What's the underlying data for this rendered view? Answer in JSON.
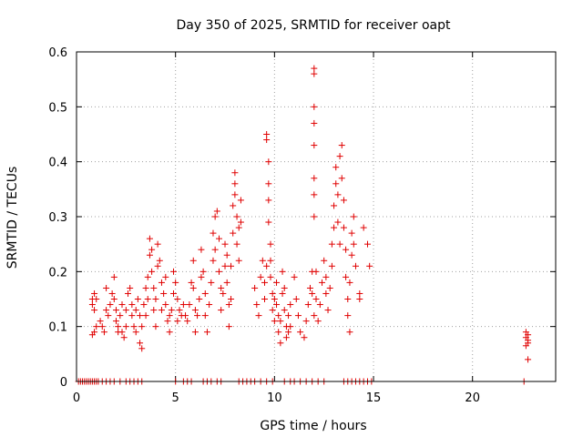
{
  "chart_data": {
    "type": "scatter",
    "title": "Day 350 of 2025, SRMTID for receiver oapt",
    "xlabel": "GPS time / hours",
    "ylabel": "SRMTID / TECUs",
    "xlim": [
      0,
      24.2
    ],
    "ylim": [
      0,
      0.6
    ],
    "grid": true,
    "x_ticks": [
      0,
      5,
      10,
      15,
      20
    ],
    "x_tick_labels": [
      "0",
      "5",
      "10",
      "15",
      "20"
    ],
    "y_ticks": [
      0,
      0.1,
      0.2,
      0.3,
      0.4,
      0.5,
      0.6
    ],
    "y_tick_labels": [
      "0",
      "0.1",
      "0.2",
      "0.3",
      "0.4",
      "0.5",
      "0.6"
    ],
    "marker": "+",
    "marker_color": "#e00000",
    "series": [
      {
        "name": "SRMTID",
        "points": [
          [
            0.1,
            0
          ],
          [
            0.2,
            0
          ],
          [
            0.3,
            0
          ],
          [
            0.4,
            0
          ],
          [
            0.5,
            0
          ],
          [
            0.6,
            0
          ],
          [
            0.7,
            0
          ],
          [
            0.8,
            0
          ],
          [
            0.9,
            0
          ],
          [
            1.0,
            0
          ],
          [
            1.1,
            0
          ],
          [
            1.3,
            0
          ],
          [
            1.5,
            0
          ],
          [
            1.7,
            0
          ],
          [
            1.9,
            0
          ],
          [
            2.2,
            0
          ],
          [
            2.5,
            0
          ],
          [
            2.7,
            0
          ],
          [
            2.9,
            0
          ],
          [
            3.1,
            0
          ],
          [
            3.3,
            0
          ],
          [
            5.0,
            0
          ],
          [
            5.4,
            0
          ],
          [
            5.6,
            0
          ],
          [
            5.8,
            0
          ],
          [
            6.4,
            0
          ],
          [
            6.6,
            0
          ],
          [
            6.8,
            0
          ],
          [
            7.1,
            0
          ],
          [
            7.3,
            0
          ],
          [
            8.2,
            0
          ],
          [
            8.4,
            0
          ],
          [
            8.6,
            0
          ],
          [
            8.8,
            0
          ],
          [
            9.0,
            0
          ],
          [
            9.3,
            0
          ],
          [
            9.6,
            0
          ],
          [
            9.9,
            0
          ],
          [
            10.5,
            0
          ],
          [
            10.8,
            0
          ],
          [
            11.0,
            0
          ],
          [
            11.3,
            0
          ],
          [
            11.6,
            0
          ],
          [
            11.9,
            0
          ],
          [
            12.2,
            0
          ],
          [
            12.5,
            0
          ],
          [
            13.5,
            0
          ],
          [
            13.7,
            0
          ],
          [
            13.9,
            0
          ],
          [
            14.1,
            0
          ],
          [
            14.3,
            0
          ],
          [
            14.5,
            0
          ],
          [
            14.7,
            0
          ],
          [
            14.9,
            0
          ],
          [
            22.6,
            0
          ],
          [
            0.8,
            0.15
          ],
          [
            0.8,
            0.14
          ],
          [
            0.9,
            0.16
          ],
          [
            0.9,
            0.13
          ],
          [
            0.9,
            0.09
          ],
          [
            0.8,
            0.085
          ],
          [
            1.0,
            0.1
          ],
          [
            1.0,
            0.15
          ],
          [
            1.2,
            0.11
          ],
          [
            1.3,
            0.1
          ],
          [
            1.4,
            0.09
          ],
          [
            1.5,
            0.13
          ],
          [
            1.5,
            0.17
          ],
          [
            1.6,
            0.12
          ],
          [
            1.7,
            0.14
          ],
          [
            1.8,
            0.16
          ],
          [
            1.9,
            0.19
          ],
          [
            1.9,
            0.15
          ],
          [
            2.0,
            0.13
          ],
          [
            2.0,
            0.11
          ],
          [
            2.1,
            0.1
          ],
          [
            2.1,
            0.09
          ],
          [
            2.2,
            0.12
          ],
          [
            2.3,
            0.14
          ],
          [
            2.3,
            0.09
          ],
          [
            2.4,
            0.08
          ],
          [
            2.5,
            0.1
          ],
          [
            2.5,
            0.13
          ],
          [
            2.6,
            0.16
          ],
          [
            2.7,
            0.17
          ],
          [
            2.8,
            0.14
          ],
          [
            2.8,
            0.12
          ],
          [
            2.9,
            0.1
          ],
          [
            3.0,
            0.13
          ],
          [
            3.0,
            0.09
          ],
          [
            3.1,
            0.15
          ],
          [
            3.2,
            0.12
          ],
          [
            3.2,
            0.07
          ],
          [
            3.3,
            0.06
          ],
          [
            3.3,
            0.1
          ],
          [
            3.4,
            0.14
          ],
          [
            3.5,
            0.17
          ],
          [
            3.5,
            0.12
          ],
          [
            3.6,
            0.15
          ],
          [
            3.6,
            0.19
          ],
          [
            3.7,
            0.23
          ],
          [
            3.7,
            0.26
          ],
          [
            3.8,
            0.24
          ],
          [
            3.8,
            0.2
          ],
          [
            3.9,
            0.17
          ],
          [
            3.9,
            0.13
          ],
          [
            4.0,
            0.1
          ],
          [
            4.0,
            0.15
          ],
          [
            4.1,
            0.21
          ],
          [
            4.1,
            0.25
          ],
          [
            4.2,
            0.22
          ],
          [
            4.3,
            0.18
          ],
          [
            4.3,
            0.13
          ],
          [
            4.4,
            0.16
          ],
          [
            4.5,
            0.19
          ],
          [
            4.5,
            0.14
          ],
          [
            4.6,
            0.11
          ],
          [
            4.7,
            0.12
          ],
          [
            4.7,
            0.09
          ],
          [
            4.8,
            0.13
          ],
          [
            4.9,
            0.16
          ],
          [
            4.9,
            0.2
          ],
          [
            5.0,
            0.18
          ],
          [
            5.1,
            0.15
          ],
          [
            5.1,
            0.11
          ],
          [
            5.2,
            0.13
          ],
          [
            5.3,
            0.12
          ],
          [
            5.4,
            0.14
          ],
          [
            5.5,
            0.12
          ],
          [
            5.6,
            0.11
          ],
          [
            5.7,
            0.14
          ],
          [
            5.8,
            0.18
          ],
          [
            5.9,
            0.22
          ],
          [
            5.9,
            0.17
          ],
          [
            6.0,
            0.13
          ],
          [
            6.0,
            0.09
          ],
          [
            6.1,
            0.12
          ],
          [
            6.2,
            0.15
          ],
          [
            6.3,
            0.19
          ],
          [
            6.3,
            0.24
          ],
          [
            6.4,
            0.2
          ],
          [
            6.5,
            0.16
          ],
          [
            6.5,
            0.12
          ],
          [
            6.6,
            0.09
          ],
          [
            6.7,
            0.14
          ],
          [
            6.8,
            0.18
          ],
          [
            6.9,
            0.22
          ],
          [
            6.9,
            0.27
          ],
          [
            7.0,
            0.24
          ],
          [
            7.0,
            0.3
          ],
          [
            7.1,
            0.31
          ],
          [
            7.2,
            0.26
          ],
          [
            7.2,
            0.2
          ],
          [
            7.3,
            0.17
          ],
          [
            7.3,
            0.13
          ],
          [
            7.4,
            0.16
          ],
          [
            7.5,
            0.21
          ],
          [
            7.5,
            0.25
          ],
          [
            7.6,
            0.23
          ],
          [
            7.6,
            0.18
          ],
          [
            7.7,
            0.14
          ],
          [
            7.7,
            0.1
          ],
          [
            7.8,
            0.15
          ],
          [
            7.8,
            0.21
          ],
          [
            7.9,
            0.27
          ],
          [
            7.9,
            0.32
          ],
          [
            8.0,
            0.36
          ],
          [
            8.0,
            0.38
          ],
          [
            8.0,
            0.34
          ],
          [
            8.1,
            0.3
          ],
          [
            8.1,
            0.25
          ],
          [
            8.2,
            0.28
          ],
          [
            8.2,
            0.22
          ],
          [
            8.3,
            0.29
          ],
          [
            8.3,
            0.33
          ],
          [
            9.0,
            0.17
          ],
          [
            9.1,
            0.14
          ],
          [
            9.2,
            0.12
          ],
          [
            9.3,
            0.19
          ],
          [
            9.4,
            0.22
          ],
          [
            9.5,
            0.18
          ],
          [
            9.5,
            0.15
          ],
          [
            9.6,
            0.21
          ],
          [
            9.6,
            0.44
          ],
          [
            9.6,
            0.45
          ],
          [
            9.7,
            0.4
          ],
          [
            9.7,
            0.36
          ],
          [
            9.7,
            0.33
          ],
          [
            9.7,
            0.29
          ],
          [
            9.8,
            0.25
          ],
          [
            9.8,
            0.22
          ],
          [
            9.8,
            0.19
          ],
          [
            9.9,
            0.16
          ],
          [
            9.9,
            0.13
          ],
          [
            10.0,
            0.11
          ],
          [
            10.0,
            0.15
          ],
          [
            10.1,
            0.18
          ],
          [
            10.1,
            0.14
          ],
          [
            10.2,
            0.12
          ],
          [
            10.2,
            0.09
          ],
          [
            10.3,
            0.07
          ],
          [
            10.3,
            0.11
          ],
          [
            10.4,
            0.16
          ],
          [
            10.4,
            0.2
          ],
          [
            10.5,
            0.17
          ],
          [
            10.5,
            0.13
          ],
          [
            10.6,
            0.1
          ],
          [
            10.6,
            0.08
          ],
          [
            10.7,
            0.09
          ],
          [
            10.7,
            0.12
          ],
          [
            10.8,
            0.14
          ],
          [
            10.8,
            0.1
          ],
          [
            11.0,
            0.19
          ],
          [
            11.1,
            0.15
          ],
          [
            11.2,
            0.12
          ],
          [
            11.3,
            0.09
          ],
          [
            11.5,
            0.08
          ],
          [
            11.6,
            0.11
          ],
          [
            11.7,
            0.14
          ],
          [
            11.8,
            0.17
          ],
          [
            11.9,
            0.2
          ],
          [
            11.9,
            0.16
          ],
          [
            12.0,
            0.12
          ],
          [
            12.0,
            0.3
          ],
          [
            12.0,
            0.34
          ],
          [
            12.0,
            0.37
          ],
          [
            12.0,
            0.43
          ],
          [
            12.0,
            0.47
          ],
          [
            12.0,
            0.5
          ],
          [
            12.0,
            0.56
          ],
          [
            12.0,
            0.57
          ],
          [
            12.1,
            0.2
          ],
          [
            12.1,
            0.15
          ],
          [
            12.2,
            0.11
          ],
          [
            12.3,
            0.14
          ],
          [
            12.4,
            0.18
          ],
          [
            12.5,
            0.22
          ],
          [
            12.6,
            0.19
          ],
          [
            12.6,
            0.16
          ],
          [
            12.7,
            0.13
          ],
          [
            12.8,
            0.17
          ],
          [
            12.9,
            0.21
          ],
          [
            12.9,
            0.25
          ],
          [
            13.0,
            0.28
          ],
          [
            13.0,
            0.32
          ],
          [
            13.1,
            0.36
          ],
          [
            13.1,
            0.39
          ],
          [
            13.2,
            0.34
          ],
          [
            13.2,
            0.29
          ],
          [
            13.3,
            0.25
          ],
          [
            13.3,
            0.41
          ],
          [
            13.4,
            0.43
          ],
          [
            13.4,
            0.37
          ],
          [
            13.5,
            0.33
          ],
          [
            13.5,
            0.28
          ],
          [
            13.6,
            0.24
          ],
          [
            13.6,
            0.19
          ],
          [
            13.7,
            0.15
          ],
          [
            13.7,
            0.12
          ],
          [
            13.8,
            0.09
          ],
          [
            13.8,
            0.18
          ],
          [
            13.9,
            0.23
          ],
          [
            13.9,
            0.27
          ],
          [
            14.0,
            0.3
          ],
          [
            14.0,
            0.25
          ],
          [
            14.1,
            0.21
          ],
          [
            14.3,
            0.16
          ],
          [
            14.3,
            0.15
          ],
          [
            14.5,
            0.28
          ],
          [
            14.7,
            0.25
          ],
          [
            14.8,
            0.21
          ],
          [
            22.7,
            0.09
          ],
          [
            22.7,
            0.08
          ],
          [
            22.8,
            0.07
          ],
          [
            22.8,
            0.075
          ],
          [
            22.7,
            0.065
          ],
          [
            22.8,
            0.085
          ],
          [
            22.8,
            0.04
          ]
        ]
      }
    ]
  }
}
